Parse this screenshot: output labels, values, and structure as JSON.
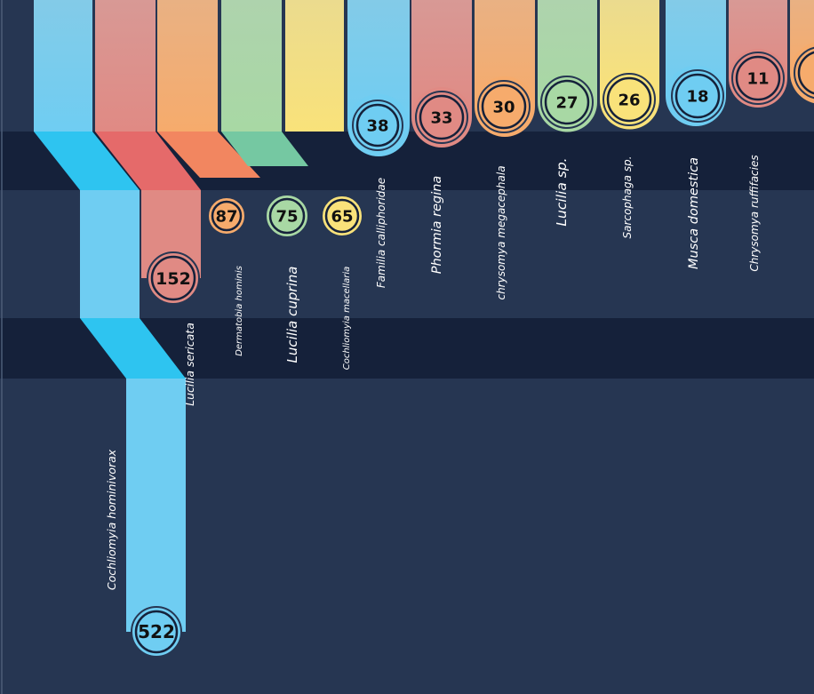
{
  "chart_data": {
    "type": "bar",
    "title": "",
    "xlabel": "",
    "ylabel": "",
    "grid": false,
    "legend": "none",
    "categories": [
      "Cochliomyia hominivorax",
      "Lucilia sericata",
      "Dermatobia hominis",
      "Lucilia cuprina",
      "Cochliomyia macellaria",
      "Familia calliphoridae",
      "Phormia regina",
      "chrysomya megacephala",
      "Lucilia sp.",
      "Sarcophaga sp.",
      "Musca domestica",
      "Chrysomya ruffifacies",
      ""
    ],
    "values": [
      522,
      152,
      87,
      75,
      65,
      38,
      33,
      30,
      27,
      26,
      18,
      11,
      null
    ],
    "value_labels": [
      "522",
      "152",
      "87",
      "75",
      "65",
      "38",
      "33",
      "30",
      "27",
      "26",
      "18",
      "11",
      ""
    ],
    "colors": {
      "blue": "#6fcdf2",
      "red": "#e08a84",
      "orange": "#f6ab6c",
      "green": "#a8d8a4",
      "yellow": "#f9e27a",
      "background": "#263652",
      "band": "#15213a"
    }
  }
}
